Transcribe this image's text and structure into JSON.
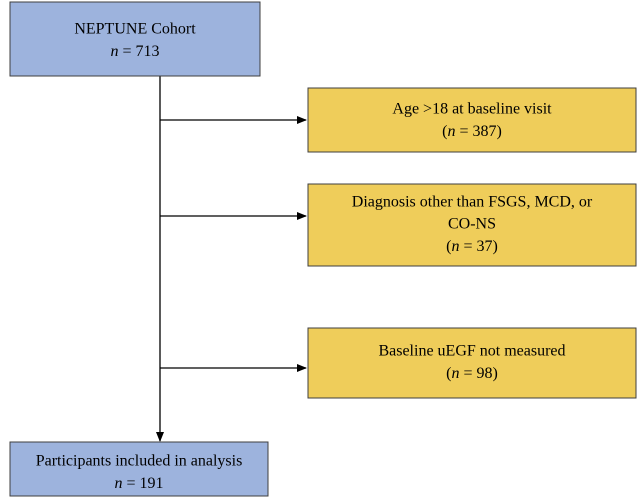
{
  "nodes": [
    {
      "lines": [
        "NEPTUNE Cohort"
      ],
      "count": {
        "variable": "n",
        "text": " = 713"
      }
    },
    {
      "lines": [
        "Age >18 at baseline visit"
      ],
      "count": {
        "prefix": "(",
        "variable": "n",
        "text": " = 387)"
      }
    },
    {
      "lines": [
        "Diagnosis other than FSGS, MCD, or",
        "CO-NS"
      ],
      "count": {
        "prefix": "(",
        "variable": "n",
        "text": " = 37)"
      }
    },
    {
      "lines": [
        "Baseline uEGF not measured"
      ],
      "count": {
        "prefix": "(",
        "variable": "n",
        "text": " = 98)"
      }
    },
    {
      "lines": [
        "Participants included in analysis"
      ],
      "count": {
        "variable": "n",
        "text": " = 191"
      }
    }
  ]
}
